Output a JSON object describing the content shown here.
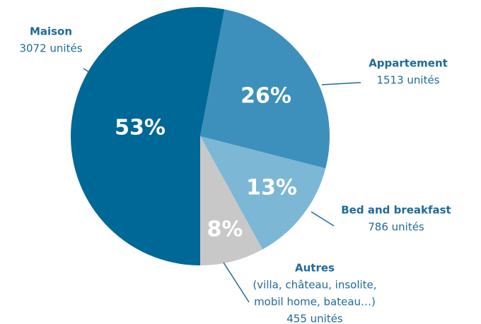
{
  "chart_data": {
    "type": "pie",
    "categories": [
      "Appartement",
      "Bed and breakfast",
      "Autres",
      "Maison"
    ],
    "values": [
      26,
      13,
      8,
      53
    ],
    "value_labels": [
      "26%",
      "13%",
      "8%",
      "53%"
    ],
    "descriptions": [
      [],
      [],
      [
        "(villa, château, insolite,",
        "mobil home, bateau…)"
      ],
      []
    ],
    "unit_labels": [
      "1513 unités",
      "786 unités",
      "455 unités",
      "3072 unités"
    ],
    "colors": [
      "#3d90bb",
      "#7db7d6",
      "#c8c8c8",
      "#006896"
    ]
  }
}
